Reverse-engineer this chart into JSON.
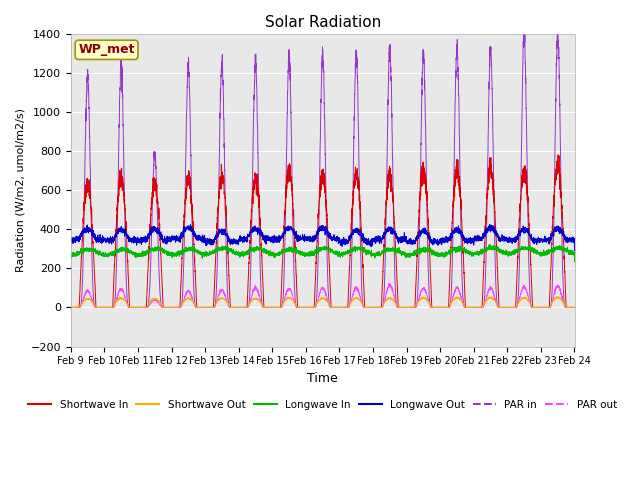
{
  "title": "Solar Radiation",
  "ylabel": "Radiation (W/m2, umol/m2/s)",
  "xlabel": "Time",
  "ylim": [
    -200,
    1400
  ],
  "xlim": [
    0,
    15
  ],
  "x_tick_labels": [
    "Feb 9",
    "Feb 10",
    "Feb 11",
    "Feb 12",
    "Feb 13",
    "Feb 14",
    "Feb 15",
    "Feb 16",
    "Feb 17",
    "Feb 18",
    "Feb 19",
    "Feb 20",
    "Feb 21",
    "Feb 22",
    "Feb 23",
    "Feb 24"
  ],
  "x_tick_positions": [
    0,
    1,
    2,
    3,
    4,
    5,
    6,
    7,
    8,
    9,
    10,
    11,
    12,
    13,
    14,
    15
  ],
  "yticks": [
    -200,
    0,
    200,
    400,
    600,
    800,
    1000,
    1200,
    1400
  ],
  "bg_color": "#e8e8e8",
  "fig_color": "#ffffff",
  "label_box_text": "WP_met",
  "label_box_bg": "#ffffcc",
  "label_box_edge": "#999900",
  "series": {
    "shortwave_in": {
      "color": "#dd0000",
      "label": "Shortwave In"
    },
    "shortwave_out": {
      "color": "#ffaa00",
      "label": "Shortwave Out"
    },
    "longwave_in": {
      "color": "#00bb00",
      "label": "Longwave In"
    },
    "longwave_out": {
      "color": "#0000cc",
      "label": "Longwave Out"
    },
    "par_in": {
      "color": "#9933cc",
      "label": "PAR in"
    },
    "par_out": {
      "color": "#ff44ff",
      "label": "PAR out"
    }
  },
  "sw_in_peaks": [
    630,
    670,
    640,
    650,
    670,
    660,
    700,
    670,
    680,
    670,
    710,
    700,
    710,
    700,
    730
  ],
  "par_in_peaks": [
    1190,
    1240,
    790,
    1230,
    1250,
    1250,
    1280,
    1290,
    1290,
    1330,
    1290,
    1330,
    1330,
    1390,
    1400
  ],
  "par_out_peaks": [
    85,
    95,
    40,
    85,
    90,
    100,
    95,
    100,
    100,
    115,
    100,
    100,
    100,
    105,
    110
  ],
  "n_days": 15,
  "samples_per_day": 288
}
